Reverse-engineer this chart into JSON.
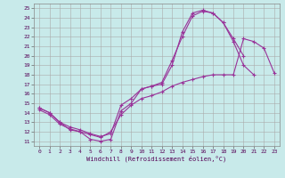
{
  "xlabel": "Windchill (Refroidissement éolien,°C)",
  "bg_color": "#c8eaea",
  "grid_color": "#aaaaaa",
  "line_color": "#993399",
  "xlim": [
    -0.5,
    23.5
  ],
  "ylim": [
    10.5,
    25.5
  ],
  "xticks": [
    0,
    1,
    2,
    3,
    4,
    5,
    6,
    7,
    8,
    9,
    10,
    11,
    12,
    13,
    14,
    15,
    16,
    17,
    18,
    19,
    20,
    21,
    22,
    23
  ],
  "yticks": [
    11,
    12,
    13,
    14,
    15,
    16,
    17,
    18,
    19,
    20,
    21,
    22,
    23,
    24,
    25
  ],
  "line1_x": [
    0,
    1,
    2,
    3,
    4,
    5,
    6,
    7,
    8,
    9,
    10,
    11,
    12,
    13,
    14,
    15,
    16,
    17,
    18,
    19,
    20,
    21
  ],
  "line1_y": [
    14.5,
    14.0,
    13.0,
    12.2,
    12.0,
    11.2,
    11.0,
    11.2,
    14.2,
    15.0,
    16.5,
    16.8,
    17.0,
    19.0,
    22.5,
    24.5,
    24.8,
    24.5,
    23.5,
    21.5,
    19.0,
    18.0
  ],
  "line2_x": [
    0,
    1,
    2,
    3,
    4,
    5,
    6,
    7,
    8,
    9,
    10,
    11,
    12,
    13,
    14,
    15,
    16,
    17,
    18,
    19,
    20,
    21,
    22,
    23
  ],
  "line2_y": [
    14.3,
    13.8,
    12.8,
    12.3,
    12.0,
    11.7,
    11.4,
    12.0,
    13.8,
    14.8,
    15.5,
    15.8,
    16.2,
    16.8,
    17.2,
    17.5,
    17.8,
    18.0,
    18.0,
    18.0,
    21.8,
    21.5,
    20.8,
    18.2
  ],
  "line3_x": [
    0,
    1,
    2,
    3,
    4,
    5,
    6,
    7,
    8,
    9,
    10,
    11,
    12,
    13,
    14,
    15,
    16,
    17,
    18,
    19,
    20
  ],
  "line3_y": [
    14.5,
    14.0,
    13.0,
    12.5,
    12.2,
    11.8,
    11.5,
    11.8,
    14.8,
    15.5,
    16.5,
    16.8,
    17.2,
    19.5,
    22.0,
    24.2,
    24.7,
    24.5,
    23.5,
    21.8,
    20.0
  ]
}
